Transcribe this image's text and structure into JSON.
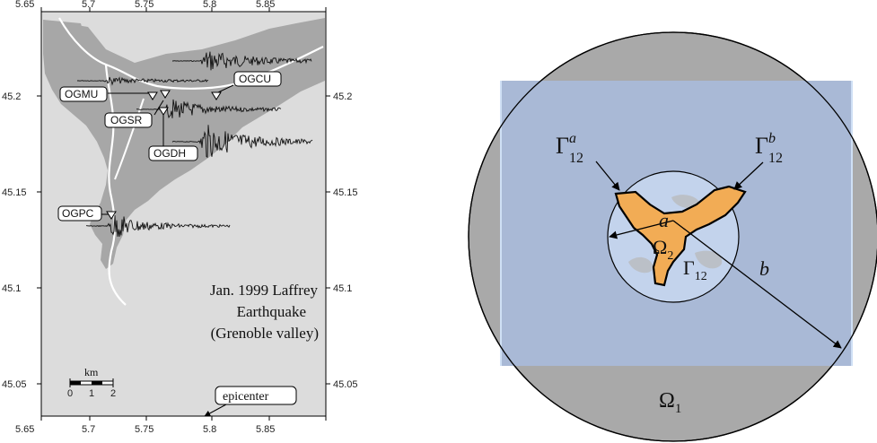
{
  "map": {
    "x_ticks": [
      "5.65",
      "5.7",
      "5.75",
      "5.8",
      "5.85"
    ],
    "y_ticks": [
      "45.2",
      "45.15",
      "45.1",
      "45.05"
    ],
    "stations": [
      "OGMU",
      "OGCU",
      "OGSR",
      "OGDH",
      "OGPC"
    ],
    "caption_lines": [
      "Jan. 1999 Laffrey",
      "Earthquake",
      "(Grenoble valley)"
    ],
    "scale_unit": "km",
    "scale_labels": [
      "0",
      "1",
      "2"
    ],
    "epicenter_label": "epicenter"
  },
  "diagram": {
    "gamma_a_base": "Γ",
    "gamma_a_sup": "a",
    "gamma_a_sub": "12",
    "gamma_b_base": "Γ",
    "gamma_b_sup": "b",
    "gamma_b_sub": "12",
    "gamma12_base": "Γ",
    "gamma12_sub": "12",
    "omega2_base": "Ω",
    "omega2_sub": "2",
    "omega1_base": "Ω",
    "omega1_sub": "1",
    "label_a": "a",
    "label_b": "b"
  },
  "colors": {
    "map_bg": "#dcdcdc",
    "valley": "#a7a7a7",
    "outer_disk": "#a9a9a9",
    "square": "#a9b9d6",
    "inner_disk": "#c3d3ec",
    "basin": "#f2ac55"
  }
}
